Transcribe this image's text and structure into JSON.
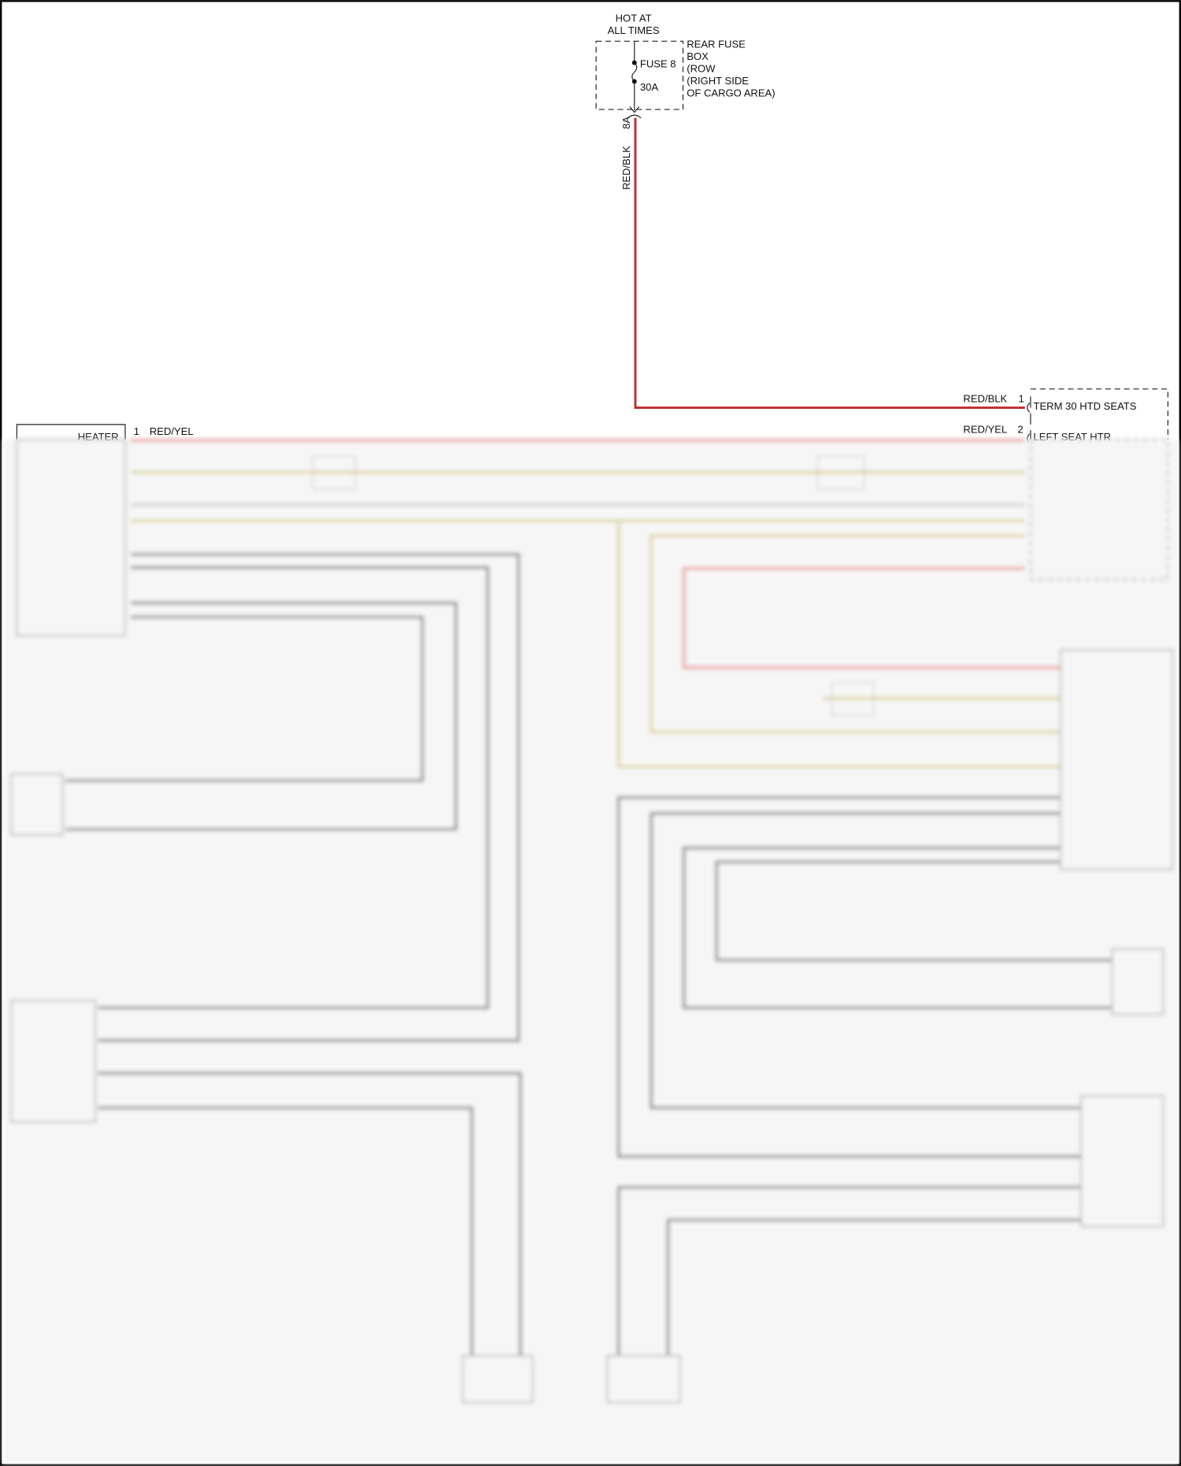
{
  "supply": {
    "line1": "HOT AT",
    "line2": "ALL TIMES"
  },
  "fuse_box": {
    "fuse_label": "FUSE 8",
    "fuse_rating": "30A",
    "name_lines": [
      "REAR FUSE",
      "BOX",
      "(ROW",
      "(RIGHT SIDE",
      "OF CARGO AREA)"
    ],
    "terminal": "8A"
  },
  "wires": {
    "feed_color": "RED/BLK",
    "term30_color": "RED/BLK",
    "left_seat_color": "RED/YEL",
    "heater_color": "RED/YEL"
  },
  "module": {
    "pin1": "1",
    "pin1_label": "TERM 30 HTD SEATS",
    "pin2": "2",
    "pin2_label": "LEFT SEAT HTR"
  },
  "heater": {
    "label": "HEATER",
    "pin": "1"
  },
  "colors": {
    "red_wire": "#c0282a",
    "red_yel_wire": "#e89a9a",
    "gray_wire": "#888888",
    "yellow_wire": "#d8d49a"
  }
}
